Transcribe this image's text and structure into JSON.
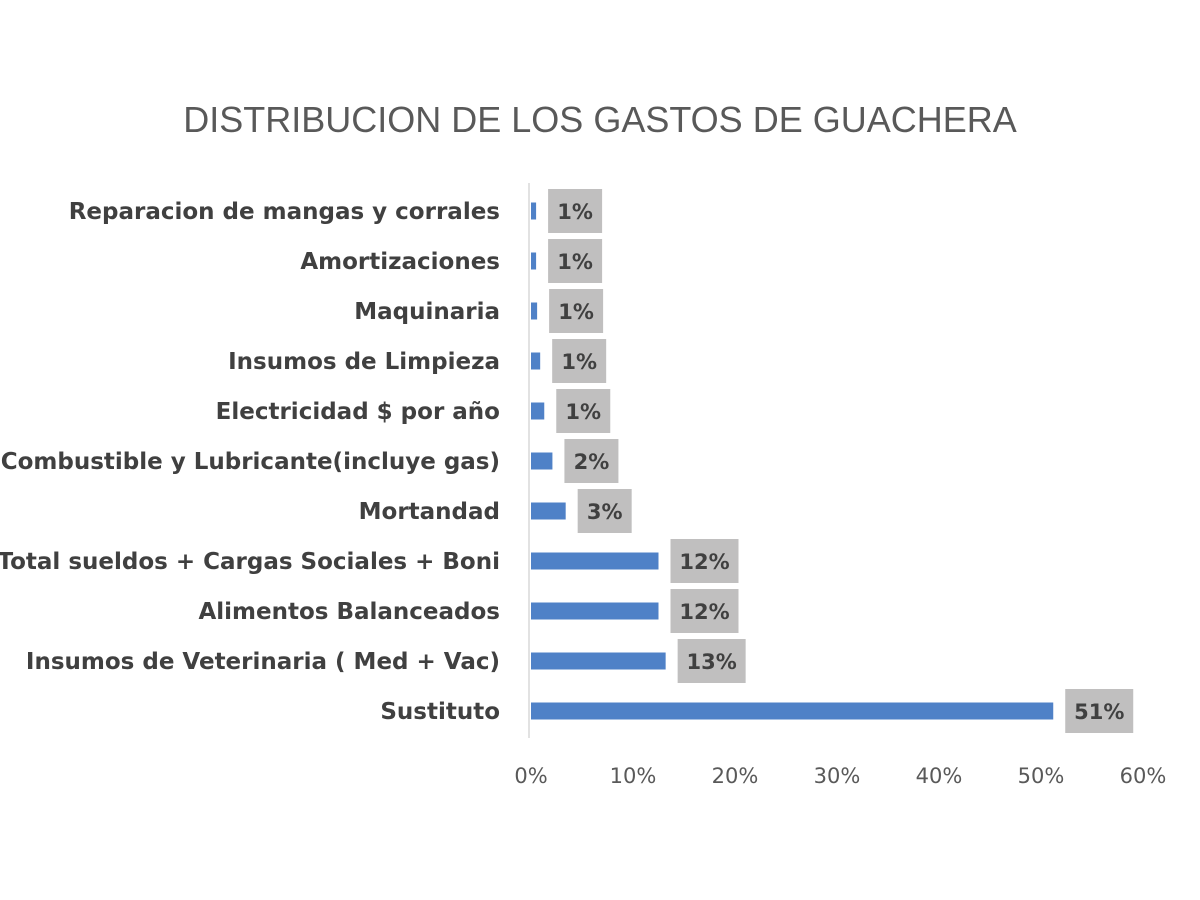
{
  "chart_data": {
    "type": "bar",
    "orientation": "horizontal",
    "title": "DISTRIBUCION DE LOS GASTOS DE GUACHERA",
    "categories": [
      "Reparacion de mangas y corrales",
      "Amortizaciones",
      "Maquinaria",
      "Insumos de Limpieza",
      "Electricidad $ por año",
      "Combustible y Lubricante(incluye gas)",
      "Mortandad",
      "Total sueldos + Cargas Sociales + Boni",
      "Alimentos Balanceados",
      "Insumos de Veterinaria ( Med + Vac)",
      "Sustituto"
    ],
    "values": [
      0.005,
      0.005,
      0.006,
      0.009,
      0.013,
      0.021,
      0.034,
      0.125,
      0.125,
      0.132,
      0.512
    ],
    "data_labels": [
      "1%",
      "1%",
      "1%",
      "1%",
      "1%",
      "2%",
      "3%",
      "12%",
      "12%",
      "13%",
      "51%"
    ],
    "xlim": [
      0,
      0.6
    ],
    "x_ticks": [
      "0%",
      "10%",
      "20%",
      "30%",
      "40%",
      "50%",
      "60%"
    ],
    "bar_color": "#4f81c7",
    "label_bg_color": "#c0bfbf",
    "grid": false,
    "legend": "none"
  }
}
